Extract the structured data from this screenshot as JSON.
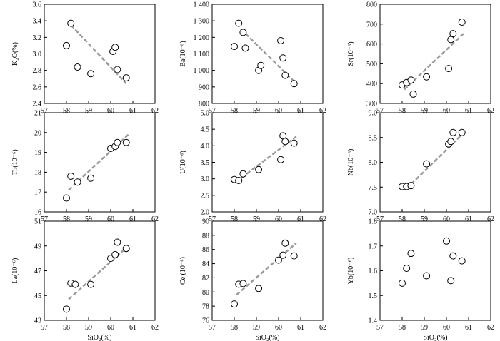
{
  "chart_data": [
    {
      "type": "scatter",
      "ylabel": "K₂O(%)",
      "xlabel": "",
      "xlim": [
        57,
        62
      ],
      "xticks": [
        57,
        58,
        59,
        60,
        61,
        62
      ],
      "ylim": [
        2.4,
        3.6
      ],
      "yticks": [
        "2.4",
        "2.6",
        "2.8",
        "3.0",
        "3.2",
        "3.4",
        "3.6"
      ],
      "points": [
        {
          "x": 58.0,
          "y": 3.1
        },
        {
          "x": 58.2,
          "y": 3.37
        },
        {
          "x": 58.5,
          "y": 2.84
        },
        {
          "x": 59.1,
          "y": 2.76
        },
        {
          "x": 60.1,
          "y": 3.03
        },
        {
          "x": 60.2,
          "y": 3.08
        },
        {
          "x": 60.3,
          "y": 2.81
        },
        {
          "x": 60.7,
          "y": 2.71
        }
      ],
      "trend": {
        "x1": 58.2,
        "y1": 3.35,
        "x2": 60.7,
        "y2": 2.64
      }
    },
    {
      "type": "scatter",
      "ylabel": "Ba(10⁻⁶)",
      "xlabel": "",
      "xlim": [
        57,
        62
      ],
      "xticks": [
        57,
        58,
        59,
        60,
        61,
        62
      ],
      "ylim": [
        800,
        1400
      ],
      "yticks": [
        "800",
        "900",
        "1 000",
        "1 100",
        "1 200",
        "1 300",
        "1 400"
      ],
      "points": [
        {
          "x": 58.0,
          "y": 1145
        },
        {
          "x": 58.2,
          "y": 1285
        },
        {
          "x": 58.4,
          "y": 1230
        },
        {
          "x": 58.5,
          "y": 1135
        },
        {
          "x": 59.1,
          "y": 1000
        },
        {
          "x": 59.2,
          "y": 1030
        },
        {
          "x": 60.1,
          "y": 1180
        },
        {
          "x": 60.2,
          "y": 1075
        },
        {
          "x": 60.3,
          "y": 970
        },
        {
          "x": 60.7,
          "y": 920
        }
      ],
      "trend": {
        "x1": 58.3,
        "y1": 1250,
        "x2": 60.8,
        "y2": 920
      }
    },
    {
      "type": "scatter",
      "ylabel": "Sr(10⁻⁶)",
      "xlabel": "",
      "xlim": [
        57,
        62
      ],
      "xticks": [
        57,
        58,
        59,
        60,
        61,
        62
      ],
      "ylim": [
        300,
        800
      ],
      "yticks": [
        "300",
        "400",
        "500",
        "600",
        "700",
        "800"
      ],
      "points": [
        {
          "x": 58.0,
          "y": 393
        },
        {
          "x": 58.2,
          "y": 405
        },
        {
          "x": 58.4,
          "y": 418
        },
        {
          "x": 58.5,
          "y": 347
        },
        {
          "x": 59.1,
          "y": 434
        },
        {
          "x": 60.1,
          "y": 476
        },
        {
          "x": 60.2,
          "y": 622
        },
        {
          "x": 60.3,
          "y": 652
        },
        {
          "x": 60.7,
          "y": 710
        }
      ],
      "trend": {
        "x1": 58.1,
        "y1": 370,
        "x2": 60.8,
        "y2": 655
      }
    },
    {
      "type": "scatter",
      "ylabel": "Th(10⁻⁶)",
      "xlabel": "",
      "xlim": [
        57,
        62
      ],
      "xticks": [
        57,
        58,
        59,
        60,
        61,
        62
      ],
      "ylim": [
        16,
        21
      ],
      "yticks": [
        "16",
        "17",
        "18",
        "19",
        "20",
        "21"
      ],
      "points": [
        {
          "x": 58.0,
          "y": 16.7
        },
        {
          "x": 58.2,
          "y": 17.8
        },
        {
          "x": 58.5,
          "y": 17.5
        },
        {
          "x": 59.1,
          "y": 17.7
        },
        {
          "x": 60.0,
          "y": 19.2
        },
        {
          "x": 60.2,
          "y": 19.3
        },
        {
          "x": 60.3,
          "y": 19.5
        },
        {
          "x": 60.7,
          "y": 19.5
        }
      ],
      "trend": {
        "x1": 58.1,
        "y1": 17.1,
        "x2": 60.8,
        "y2": 19.9
      }
    },
    {
      "type": "scatter",
      "ylabel": "U(10⁻⁶)",
      "xlabel": "",
      "xlim": [
        57,
        62
      ],
      "xticks": [
        57,
        58,
        59,
        60,
        61,
        62
      ],
      "ylim": [
        2.0,
        5.0
      ],
      "yticks": [
        "2.0",
        "2.5",
        "3.0",
        "3.5",
        "4.0",
        "4.5",
        "5.0"
      ],
      "points": [
        {
          "x": 58.0,
          "y": 2.98
        },
        {
          "x": 58.2,
          "y": 2.95
        },
        {
          "x": 58.4,
          "y": 3.15
        },
        {
          "x": 59.1,
          "y": 3.28
        },
        {
          "x": 60.1,
          "y": 3.58
        },
        {
          "x": 60.2,
          "y": 4.3
        },
        {
          "x": 60.3,
          "y": 4.13
        },
        {
          "x": 60.7,
          "y": 4.08
        }
      ],
      "trend": {
        "x1": 58.1,
        "y1": 2.92,
        "x2": 60.8,
        "y2": 4.28
      }
    },
    {
      "type": "scatter",
      "ylabel": "Nb(10⁻⁶)",
      "xlabel": "",
      "xlim": [
        57,
        62
      ],
      "xticks": [
        57,
        58,
        59,
        60,
        61,
        62
      ],
      "ylim": [
        7.0,
        9.0
      ],
      "yticks": [
        "7.0",
        "7.5",
        "8.0",
        "8.5",
        "9.0"
      ],
      "points": [
        {
          "x": 58.0,
          "y": 7.51
        },
        {
          "x": 58.2,
          "y": 7.51
        },
        {
          "x": 58.4,
          "y": 7.53
        },
        {
          "x": 59.1,
          "y": 7.97
        },
        {
          "x": 60.1,
          "y": 8.37
        },
        {
          "x": 60.2,
          "y": 8.42
        },
        {
          "x": 60.3,
          "y": 8.6
        },
        {
          "x": 60.7,
          "y": 8.6
        }
      ],
      "trend": {
        "x1": 58.2,
        "y1": 7.47,
        "x2": 60.7,
        "y2": 8.56
      }
    },
    {
      "type": "scatter",
      "ylabel": "La(10⁻⁶)",
      "xlabel": "SiO₂(%)",
      "xlim": [
        57,
        62
      ],
      "xticks": [
        57,
        58,
        59,
        60,
        61,
        62
      ],
      "ylim": [
        43,
        51
      ],
      "yticks": [
        "43",
        "45",
        "47",
        "49",
        "51"
      ],
      "points": [
        {
          "x": 58.0,
          "y": 43.9
        },
        {
          "x": 58.2,
          "y": 46.0
        },
        {
          "x": 58.4,
          "y": 45.9
        },
        {
          "x": 59.1,
          "y": 45.9
        },
        {
          "x": 60.0,
          "y": 48.0
        },
        {
          "x": 60.2,
          "y": 48.3
        },
        {
          "x": 60.3,
          "y": 49.3
        },
        {
          "x": 60.7,
          "y": 48.8
        }
      ],
      "trend": {
        "x1": 58.1,
        "y1": 44.7,
        "x2": 60.8,
        "y2": 49.0
      }
    },
    {
      "type": "scatter",
      "ylabel": "Ce (10⁻⁶)",
      "xlabel": "SiO₂(%)",
      "xlim": [
        57,
        62
      ],
      "xticks": [
        57,
        58,
        59,
        60,
        61,
        62
      ],
      "ylim": [
        76,
        90
      ],
      "yticks": [
        "76",
        "78",
        "80",
        "82",
        "84",
        "86",
        "88",
        "90"
      ],
      "points": [
        {
          "x": 58.0,
          "y": 78.3
        },
        {
          "x": 58.2,
          "y": 81.1
        },
        {
          "x": 58.4,
          "y": 81.2
        },
        {
          "x": 59.1,
          "y": 80.5
        },
        {
          "x": 60.0,
          "y": 84.5
        },
        {
          "x": 60.2,
          "y": 85.2
        },
        {
          "x": 60.3,
          "y": 86.9
        },
        {
          "x": 60.7,
          "y": 85.1
        }
      ],
      "trend": {
        "x1": 58.1,
        "y1": 79.6,
        "x2": 60.8,
        "y2": 86.9
      }
    },
    {
      "type": "scatter",
      "ylabel": "Yb(10⁻⁶)",
      "xlabel": "SiO₂(%)",
      "xlim": [
        57,
        62
      ],
      "xticks": [
        57,
        58,
        59,
        60,
        61,
        62
      ],
      "ylim": [
        1.4,
        1.8
      ],
      "yticks": [
        "1.4",
        "1.5",
        "1.6",
        "1.7",
        "1.8"
      ],
      "points": [
        {
          "x": 58.0,
          "y": 1.55
        },
        {
          "x": 58.2,
          "y": 1.61
        },
        {
          "x": 58.4,
          "y": 1.67
        },
        {
          "x": 59.1,
          "y": 1.58
        },
        {
          "x": 60.0,
          "y": 1.72
        },
        {
          "x": 60.2,
          "y": 1.56
        },
        {
          "x": 60.3,
          "y": 1.66
        },
        {
          "x": 60.7,
          "y": 1.64
        }
      ],
      "trend": null
    }
  ]
}
